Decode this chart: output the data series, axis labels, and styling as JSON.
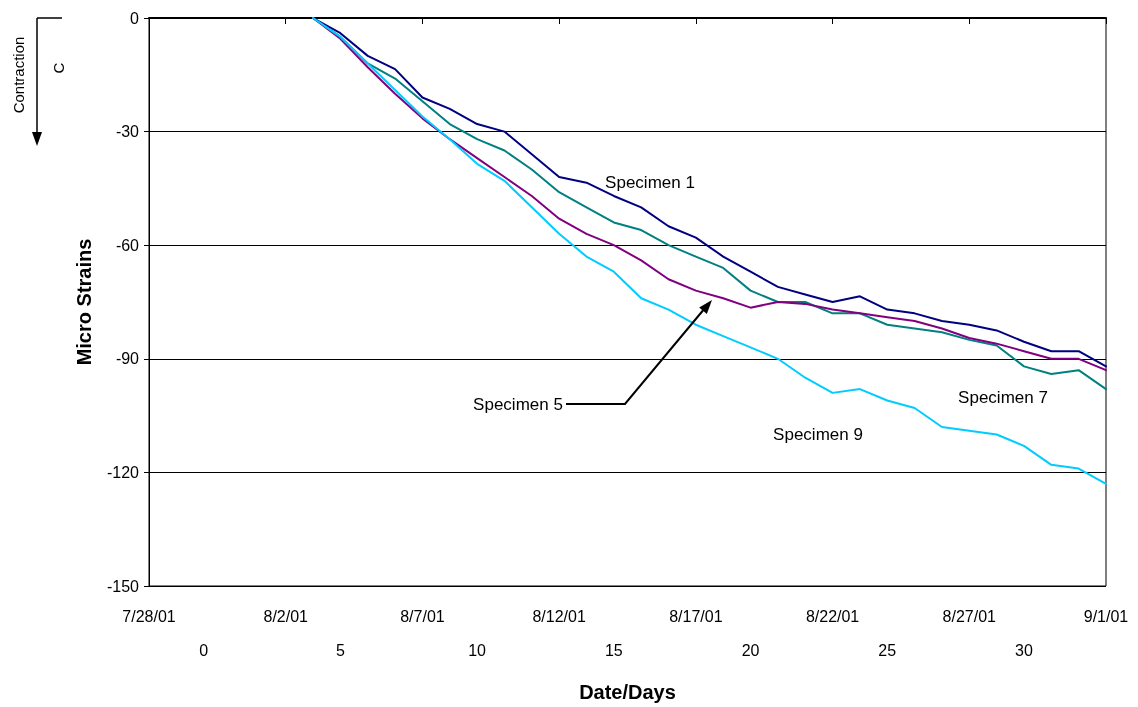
{
  "chart_data": {
    "type": "line",
    "xlabel": "Date/Days",
    "ylabel": "Micro Strains",
    "grid": "y",
    "marker": "none",
    "line_style": "solid",
    "x": [
      "--08-03",
      "--08-04",
      "--08-05",
      "--08-06",
      "--08-07",
      "--08-08",
      "--08-09",
      "--08-10",
      "--08-11",
      "--08-12",
      "--08-13",
      "--08-14",
      "--08-15",
      "--08-16",
      "--08-17",
      "--08-18",
      "--08-19",
      "--08-20",
      "--08-21",
      "--08-22",
      "--08-23",
      "--08-24",
      "--08-25",
      "--08-26",
      "--08-27",
      "--08-28",
      "--08-29",
      "--08-30",
      "--08-31",
      "--09-01"
    ],
    "series": [
      {
        "name": "Specimen 1",
        "color": "#000080",
        "values": [
          0,
          -4,
          -10,
          -13.5,
          -21,
          -24,
          -28,
          -30,
          -36,
          -42,
          -43.5,
          -47,
          -50,
          -55,
          -58,
          -63,
          -67,
          -71,
          -73,
          -75,
          -73.5,
          -77,
          -78,
          -80,
          -81,
          -82.5,
          -85.5,
          -88,
          -88,
          -92
        ]
      },
      {
        "name": "Specimen 7",
        "color": "#008080",
        "values": [
          0,
          -5,
          -12,
          -16,
          -22,
          -28,
          -32,
          -35,
          -40,
          -46,
          -50,
          -54,
          -56,
          -60,
          -63,
          -66,
          -72,
          -75,
          -75,
          -78,
          -78,
          -81,
          -82,
          -83,
          -85,
          -86.5,
          -92,
          -94,
          -93,
          -98
        ]
      },
      {
        "name": "Specimen 5",
        "color": "#800080",
        "values": [
          0,
          -5.5,
          -13,
          -20,
          -26.5,
          -32,
          -37,
          -42,
          -47,
          -53,
          -57,
          -60,
          -64,
          -69,
          -72,
          -74,
          -76.5,
          -75,
          -75.5,
          -77,
          -78,
          -79,
          -80,
          -82,
          -84.5,
          -86,
          -88,
          -90,
          -90,
          -93
        ]
      },
      {
        "name": "Specimen 9",
        "color": "#00ccff",
        "values": [
          0,
          -5,
          -12,
          -19,
          -26,
          -32,
          -38.5,
          -43,
          -50,
          -57,
          -63,
          -67,
          -74,
          -77,
          -81,
          -84,
          -87,
          -90,
          -95,
          -99,
          -98,
          -101,
          -103,
          -108,
          -109,
          -110,
          -113,
          -118,
          -119,
          -123
        ]
      }
    ],
    "xlim": [
      "--07-28",
      "--09-01"
    ],
    "xticks": [
      {
        "value": "--07-28",
        "label": "7/28/01"
      },
      {
        "value": "--08-02",
        "label": "8/2/01"
      },
      {
        "value": "--08-07",
        "label": "8/7/01"
      },
      {
        "value": "--08-12",
        "label": "8/12/01"
      },
      {
        "value": "--08-17",
        "label": "8/17/01"
      },
      {
        "value": "--08-22",
        "label": "8/22/01"
      },
      {
        "value": "--08-27",
        "label": "8/27/01"
      },
      {
        "value": "--09-01",
        "label": "9/1/01"
      }
    ],
    "x2lim": [
      -2,
      33
    ],
    "x2ticks": [
      0,
      5,
      10,
      15,
      20,
      25,
      30
    ],
    "ylim": [
      -150,
      0
    ],
    "yticks": [
      -150,
      -120,
      -90,
      -60,
      -30,
      0
    ],
    "annotations": [
      "Contraction",
      "C"
    ]
  }
}
